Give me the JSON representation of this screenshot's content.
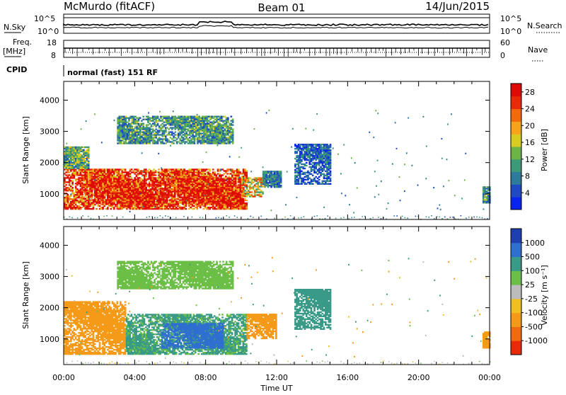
{
  "header": {
    "station": "McMurdo (fitACF)",
    "beam": "Beam 01",
    "date": "14/Jun/2015"
  },
  "top_panels": {
    "nsky_label": "N.Sky",
    "nsearch_label": "N.Search",
    "nsky_ticks": [
      "10^5",
      "10^0"
    ],
    "nsearch_ticks": [
      "10^5",
      "10^0"
    ],
    "freq_label": "Freq.",
    "freq_unit": "[MHz]",
    "freq_ticks": [
      "18",
      "8"
    ],
    "nave_label": "Nave",
    "nave_ticks": [
      "60",
      "0"
    ],
    "cpid_label": "CPID",
    "cpid_text": "normal (fast) 151 RF"
  },
  "chart_data": [
    {
      "type": "heatmap",
      "name": "power",
      "ylabel": "Slant Range [km]",
      "yticks": [
        1000,
        2000,
        3000,
        4000
      ],
      "ylim": [
        180,
        4600
      ],
      "xlim": [
        0,
        24
      ],
      "xticks": [
        0,
        4,
        8,
        12,
        16,
        20,
        24
      ],
      "colorbar": {
        "label": "Power [dB]",
        "ticks": [
          4,
          8,
          12,
          16,
          20,
          24,
          28
        ],
        "range": [
          0,
          30
        ],
        "colors": [
          "#0a24f0",
          "#1f49c2",
          "#2e7a9a",
          "#3c9a78",
          "#6cb446",
          "#d8cc22",
          "#f6a21a",
          "#f26a0a",
          "#e82a08",
          "#dd0a06"
        ]
      },
      "regions": [
        {
          "t0": 0,
          "t1": 10.3,
          "r0": 500,
          "r1": 1800,
          "level": 26
        },
        {
          "t0": 1.0,
          "t1": 10.0,
          "r0": 650,
          "r1": 1500,
          "level": 29
        },
        {
          "t0": 10.0,
          "t1": 11.2,
          "r0": 900,
          "r1": 1500,
          "level": 18
        },
        {
          "t0": 11.2,
          "t1": 12.2,
          "r0": 1200,
          "r1": 1700,
          "level": 8
        },
        {
          "t0": 0,
          "t1": 1.4,
          "r0": 1800,
          "r1": 2500,
          "level": 12
        },
        {
          "t0": 3.0,
          "t1": 9.5,
          "r0": 2600,
          "r1": 3500,
          "level": 10
        },
        {
          "t0": 13.0,
          "t1": 15.0,
          "r0": 1300,
          "r1": 2600,
          "level": 6
        },
        {
          "t0": 23.6,
          "t1": 24.0,
          "r0": 700,
          "r1": 1200,
          "level": 10
        }
      ]
    },
    {
      "type": "heatmap",
      "name": "velocity",
      "ylabel": "Slant Range [km]",
      "xlabel": "Time UT",
      "yticks": [
        1000,
        2000,
        3000,
        4000
      ],
      "ylim": [
        180,
        4600
      ],
      "xlim": [
        0,
        24
      ],
      "xticks": [
        0,
        4,
        8,
        12,
        16,
        20,
        24
      ],
      "xticklabels": [
        "00:00",
        "04:00",
        "08:00",
        "12:00",
        "16:00",
        "20:00",
        "00:00"
      ],
      "colorbar": {
        "label": "Velocity [m s⁻¹]",
        "ticks": [
          "1000",
          "500",
          "100",
          "25",
          "-25",
          "-100",
          "-500",
          "-1000"
        ],
        "colors": [
          "#1e3fb0",
          "#2f6fd0",
          "#3a9a88",
          "#6cbf46",
          "#bcbcbc",
          "#f0c020",
          "#f59a18",
          "#f06a12",
          "#e82a08"
        ]
      },
      "regions": [
        {
          "t0": 0,
          "t1": 3.5,
          "r0": 500,
          "r1": 2200,
          "level": -150
        },
        {
          "t0": 3.5,
          "t1": 10.3,
          "r0": 500,
          "r1": 1800,
          "level": 120
        },
        {
          "t0": 5.5,
          "t1": 9.0,
          "r0": 700,
          "r1": 1500,
          "level": 700
        },
        {
          "t0": 10.3,
          "t1": 12.0,
          "r0": 1000,
          "r1": 1800,
          "level": -200
        },
        {
          "t0": 3.0,
          "t1": 9.5,
          "r0": 2600,
          "r1": 3500,
          "level": 50
        },
        {
          "t0": 13.0,
          "t1": 15.0,
          "r0": 1300,
          "r1": 2600,
          "level": 300
        },
        {
          "t0": 23.6,
          "t1": 24.0,
          "r0": 700,
          "r1": 1200,
          "level": -300
        }
      ]
    }
  ]
}
